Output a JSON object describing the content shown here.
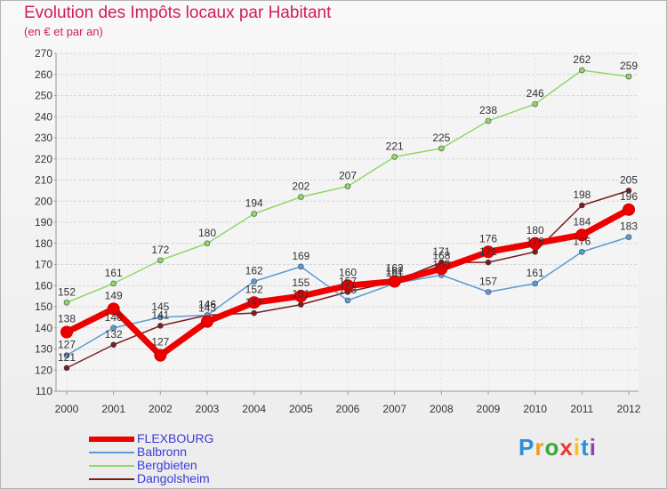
{
  "title": "Evolution des Impôts locaux par Habitant",
  "subtitle": "(en € et par an)",
  "brand": {
    "letters": [
      "P",
      "r",
      "o",
      "x",
      "i",
      "t",
      "i"
    ],
    "colors": [
      "#2b8fd6",
      "#f39a1d",
      "#3aa63a",
      "#e63b2e",
      "#f4c21c",
      "#2b8fd6",
      "#8e44ad"
    ]
  },
  "chart_data": {
    "type": "line",
    "title": "Evolution des Impôts locaux par Habitant",
    "subtitle": "(en € et par an)",
    "xlabel": "",
    "ylabel": "",
    "x": [
      "2000",
      "2001",
      "2002",
      "2003",
      "2004",
      "2005",
      "2006",
      "2007",
      "2008",
      "2009",
      "2010",
      "2011",
      "2012"
    ],
    "ylim": [
      110,
      270
    ],
    "yticks": [
      "110",
      "120",
      "130",
      "140",
      "150",
      "160",
      "170",
      "180",
      "190",
      "200",
      "210",
      "220",
      "230",
      "240",
      "250",
      "260",
      "270"
    ],
    "grid": "horizontal",
    "legend_position": "bottom-left",
    "series": [
      {
        "name": "Dangolsheim",
        "color": "#7a1d1d",
        "values": [
          121,
          132,
          141,
          146,
          147,
          151,
          157,
          162,
          171,
          171,
          176,
          198,
          205
        ]
      },
      {
        "name": "Balbronn",
        "color": "#5b9bd5",
        "values": [
          127,
          140,
          145,
          146,
          162,
          169,
          153,
          161,
          165,
          157,
          161,
          176,
          183
        ]
      },
      {
        "name": "Bergbieten",
        "color": "#90d868",
        "values": [
          152,
          161,
          172,
          180,
          194,
          202,
          207,
          221,
          225,
          238,
          246,
          262,
          259
        ]
      },
      {
        "name": "FLEXBOURG",
        "color": "#ee0000",
        "values": [
          138,
          149,
          127,
          143,
          152,
          155,
          160,
          162,
          168,
          176,
          180,
          184,
          196
        ]
      }
    ],
    "legend_order": [
      "FLEXBOURG",
      "Balbronn",
      "Bergbieten",
      "Dangolsheim"
    ]
  }
}
